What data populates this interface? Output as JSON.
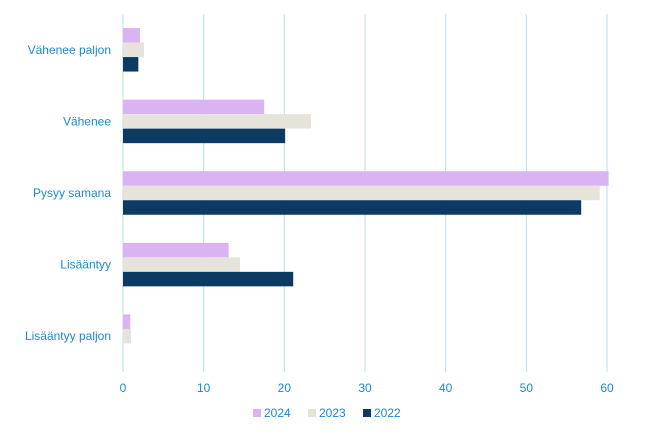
{
  "chart_data": {
    "type": "bar",
    "orientation": "horizontal",
    "categories": [
      "Vähenee paljon",
      "Vähenee",
      "Pysyy samana",
      "Lisääntyy",
      "Lisääntyy paljon"
    ],
    "series": [
      {
        "name": "2024",
        "color": "#d9b3f2",
        "values": [
          2.1,
          17.5,
          60.2,
          13.1,
          0.9
        ]
      },
      {
        "name": "2023",
        "color": "#e6e3db",
        "values": [
          2.6,
          23.3,
          59.1,
          14.5,
          1.0
        ]
      },
      {
        "name": "2022",
        "color": "#0d3a63",
        "values": [
          1.9,
          20.1,
          56.8,
          21.1,
          0
        ]
      }
    ],
    "xlim": [
      0,
      60
    ],
    "xticks": [
      0,
      10,
      20,
      30,
      40,
      50,
      60
    ],
    "grid": true,
    "legend_position": "bottom",
    "title": "",
    "xlabel": "",
    "ylabel": "",
    "colors": {
      "grid": "#b9def2",
      "text": "#1a8ad0"
    }
  }
}
